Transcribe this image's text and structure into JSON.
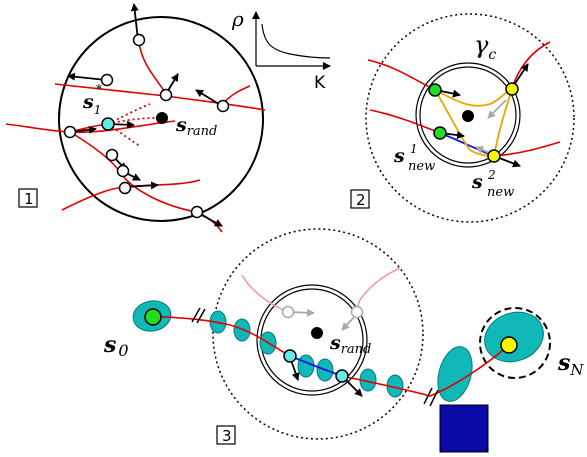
{
  "colors": {
    "red": "#e00000",
    "pink": "#f29b9b",
    "blue": "#1818d8",
    "teal": "#10b8b8",
    "green": "#22dd22",
    "yellow": "#f4f400",
    "cyan": "#66e8e8",
    "orange": "#e8a800",
    "gray": "#a8a8a8",
    "navy": "#0a0aa8"
  },
  "panel1": {
    "box_label": "1",
    "s1_base": "s",
    "s1_sub": "1",
    "s1_sup": "*",
    "srand_base": "s",
    "srand_sub": "rand",
    "inset_ylabel": "ρ",
    "inset_xlabel": "K"
  },
  "panel2": {
    "box_label": "2",
    "gamma_base": "γ",
    "gamma_sub": "c",
    "snew1_base": "s",
    "snew1_sup": "1",
    "snew1_sub": "new",
    "snew2_base": "s",
    "snew2_sup": "2",
    "snew2_sub": "new"
  },
  "panel3": {
    "box_label": "3",
    "s0_base": "s",
    "s0_sub": "0",
    "srand_base": "s",
    "srand_sub": "rand",
    "sn_base": "s",
    "sn_sub": "N"
  }
}
